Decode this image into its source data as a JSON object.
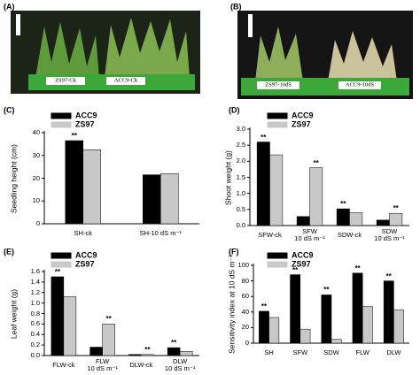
{
  "photos": [
    {
      "panel": "(A)",
      "tags": [
        "ZS97-Ck",
        "ACC9-Ck"
      ]
    },
    {
      "panel": "(B)",
      "tags": [
        "ZS97-10dS",
        "ACC9-10dS"
      ]
    }
  ],
  "chart_data": [
    {
      "type": "bar",
      "panel": "(C)",
      "ylabel": "Seedling height (cm)",
      "categories": [
        "SH-ck",
        "SH-10 dS m⁻¹"
      ],
      "series": [
        {
          "name": "ACC9",
          "color": "#000000",
          "values": [
            36.5,
            21.5
          ],
          "significance": [
            "**",
            null
          ]
        },
        {
          "name": "ZS97",
          "color": "#c8c8c8",
          "values": [
            32.5,
            22
          ],
          "significance": [
            null,
            null
          ]
        }
      ],
      "ylim": [
        0,
        40
      ],
      "yticks": [
        0,
        10,
        20,
        30,
        40
      ]
    },
    {
      "type": "bar",
      "panel": "(D)",
      "ylabel": "Shoot weight (g)",
      "categories": [
        "SFW-ck",
        "SFW\n10 dS m⁻¹",
        "SDW-ck",
        "SDW\n10 dS m⁻¹"
      ],
      "series": [
        {
          "name": "ACC9",
          "color": "#000000",
          "values": [
            2.6,
            0.28,
            0.52,
            0.17
          ],
          "significance": [
            "**",
            null,
            "**",
            null
          ]
        },
        {
          "name": "ZS97",
          "color": "#c8c8c8",
          "values": [
            2.2,
            1.8,
            0.4,
            0.38
          ],
          "significance": [
            null,
            "**",
            null,
            "**"
          ]
        }
      ],
      "ylim": [
        0,
        3
      ],
      "yticks": [
        {
          "value": 0,
          "label": "0.0"
        },
        {
          "value": 0.5,
          "label": "0.5"
        },
        {
          "value": 1,
          "label": "1.0"
        },
        {
          "value": 1.5,
          "label": "1.5"
        },
        {
          "value": 2,
          "label": "2.0"
        },
        {
          "value": 2.5,
          "label": "2.5"
        },
        {
          "value": 3,
          "label": "3.0"
        }
      ]
    },
    {
      "type": "bar",
      "panel": "(E)",
      "ylabel": "Leaf weight (g)",
      "categories": [
        "FLW-ck",
        "FLW\n10 dS m⁻¹",
        "DLW-ck",
        "DLW\n10 dS m⁻¹"
      ],
      "series": [
        {
          "name": "ACC9",
          "color": "#000000",
          "values": [
            1.5,
            0.16,
            0.02,
            0.15
          ],
          "significance": [
            "**",
            null,
            null,
            "**"
          ]
        },
        {
          "name": "ZS97",
          "color": "#c8c8c8",
          "values": [
            1.12,
            0.6,
            0.02,
            0.08
          ],
          "significance": [
            null,
            "**",
            "**",
            null
          ]
        }
      ],
      "ylim": [
        0,
        1.6
      ],
      "yticks": [
        {
          "value": 0,
          "label": "0.0"
        },
        0.2,
        0.4,
        0.6,
        0.8,
        {
          "value": 1,
          "label": "1.0"
        },
        1.2,
        1.4,
        1.6
      ]
    },
    {
      "type": "bar",
      "panel": "(F)",
      "ylabel": "Sensitivity index at 10 dS m⁻¹",
      "categories": [
        "SH",
        "SFW",
        "SDW",
        "FLW",
        "DLW"
      ],
      "series": [
        {
          "name": "ACC9",
          "color": "#000000",
          "values": [
            41,
            88,
            62,
            90,
            80
          ],
          "significance": [
            "**",
            "**",
            "**",
            "**",
            "**"
          ]
        },
        {
          "name": "ZS97",
          "color": "#c8c8c8",
          "values": [
            33,
            18,
            5,
            47,
            43
          ],
          "significance": [
            null,
            null,
            null,
            null,
            null
          ]
        }
      ],
      "ylim": [
        0,
        100
      ],
      "yticks": [
        0,
        20,
        40,
        60,
        80,
        100
      ]
    }
  ]
}
